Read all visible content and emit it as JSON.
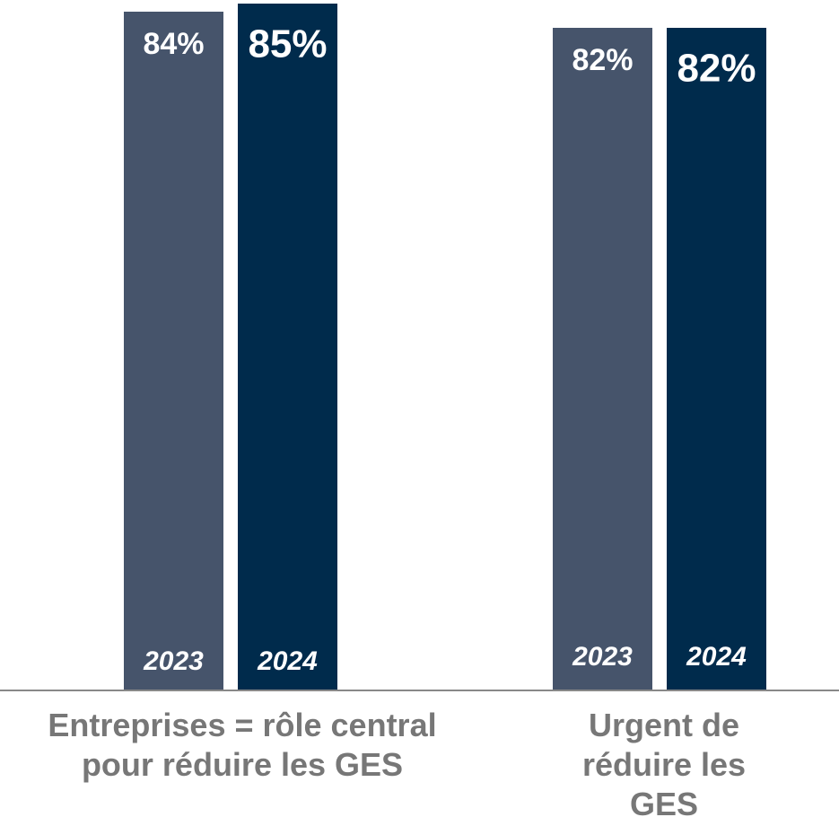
{
  "chart_data": {
    "type": "bar",
    "categories": [
      "Entreprises = rôle central pour réduire les GES",
      "Urgent de réduire les GES"
    ],
    "series": [
      {
        "name": "2023",
        "color": "#46546b",
        "values": [
          84,
          82
        ],
        "value_labels": [
          "84%",
          "82%"
        ]
      },
      {
        "name": "2024",
        "color": "#002b4c",
        "values": [
          85,
          82
        ],
        "value_labels": [
          "85%",
          "82%"
        ]
      }
    ],
    "ylim": [
      0,
      85
    ]
  }
}
